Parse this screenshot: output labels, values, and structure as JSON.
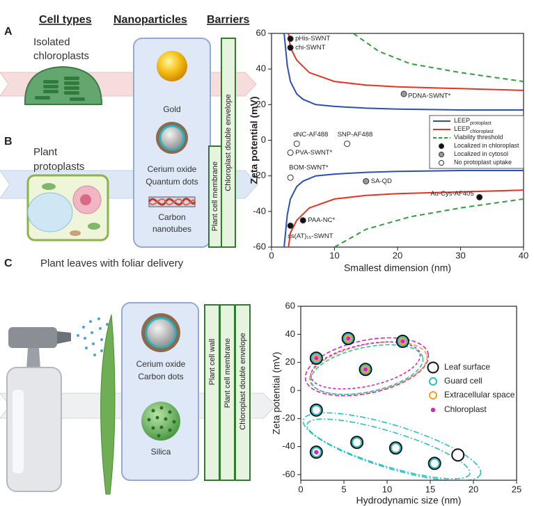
{
  "headers": [
    "Cell types",
    "Nanoparticles",
    "Barriers"
  ],
  "panel_labels": [
    "A",
    "B",
    "C"
  ],
  "panel_a": {
    "cell": [
      "Isolated",
      "chloroplasts"
    ]
  },
  "panel_b": {
    "cell": [
      "Plant",
      "protoplasts"
    ]
  },
  "nanoparticles_ab": [
    "Gold",
    "Cerium oxide",
    "Quantum dots",
    "Carbon",
    "nanotubes"
  ],
  "barriers_ab": [
    "Plant cell membrane",
    "Chloroplast double envelope"
  ],
  "panel_c": {
    "title": "Plant leaves with foliar delivery",
    "nanoparticles": [
      "Cerium oxide",
      "Carbon dots",
      "Silica"
    ],
    "barriers": [
      "Plant cell wall",
      "Plant cell membrane",
      "Chloroplast double envelope"
    ]
  },
  "chart_data": [
    {
      "type": "line",
      "x_label": "Smallest dimension (nm)",
      "y_label": "Zeta potential (mV)",
      "xlim": [
        0,
        40
      ],
      "xticks": [
        0,
        10,
        20,
        30,
        40
      ],
      "ylim": [
        -60,
        60
      ],
      "yticks": [
        -60,
        -40,
        -20,
        0,
        20,
        40,
        60
      ],
      "legend": "right",
      "series": [
        {
          "name": "LEEP",
          "subscript": "protoplast",
          "type": "line",
          "color": "#2b4fb5",
          "linestyle": "solid",
          "x": [
            2,
            2.5,
            3,
            4,
            5,
            7,
            10,
            15,
            20,
            30,
            40,
            null,
            2,
            2.5,
            3,
            4,
            5,
            7,
            10,
            15,
            20,
            30,
            40
          ],
          "values": [
            60,
            42,
            33,
            26,
            23,
            20,
            19,
            18,
            17.5,
            17,
            17,
            null,
            -60,
            -42,
            -33,
            -26,
            -23,
            -20,
            -19,
            -18,
            -17.5,
            -17,
            -17
          ]
        },
        {
          "name": "LEEP",
          "subscript": "chloroplast",
          "type": "line",
          "color": "#e8321e",
          "linestyle": "solid",
          "x": [
            2.7,
            3,
            4,
            6,
            10,
            15,
            20,
            30,
            40,
            null,
            2.7,
            3,
            4,
            6,
            10,
            15,
            20,
            30,
            40
          ],
          "values": [
            60,
            52,
            45,
            38,
            33,
            31,
            30,
            29,
            28,
            null,
            -60,
            -52,
            -45,
            -38,
            -33,
            -31,
            -30,
            -29,
            -28
          ]
        },
        {
          "name": "Viability threshold",
          "type": "line",
          "color": "#2e9e3a",
          "linestyle": "dashed",
          "x": [
            13,
            17,
            22,
            30,
            40,
            null,
            10,
            15,
            22,
            30,
            40
          ],
          "values": [
            60,
            50,
            43,
            38,
            33,
            null,
            -60,
            -50,
            -43,
            -38,
            -33
          ]
        },
        {
          "name": "Localized in chloroplast",
          "type": "scatter",
          "color": "#111111",
          "x": [
            3,
            3,
            33,
            5,
            3
          ],
          "values": [
            57,
            52,
            -32,
            -45,
            -48
          ],
          "labels": [
            "pHis-SWNT",
            "chi-SWNT",
            "Au-Cys-AF405",
            "PAA-NC*",
            "ss(AT)₁₅-SWNT"
          ]
        },
        {
          "name": "Localized in cytosol",
          "type": "scatter",
          "color": "#999999",
          "x": [
            21,
            15
          ],
          "values": [
            26,
            -23
          ],
          "labels": [
            "PDNA-SWNT*",
            "SA-QD"
          ]
        },
        {
          "name": "No protoplast uptake",
          "type": "scatter",
          "color": "#ffffff",
          "x": [
            4,
            12,
            3,
            3
          ],
          "values": [
            -2,
            -2,
            -7,
            -21
          ],
          "labels": [
            "dNC-AF488",
            "SNP-AF488",
            "PVA-SWNT*",
            "BOM-SWNT*"
          ]
        }
      ]
    },
    {
      "type": "scatter",
      "x_label": "Hydrodynamic size (nm)",
      "y_label": "Zeta potential (mV)",
      "xlim": [
        0,
        25
      ],
      "xticks": [
        0,
        5,
        10,
        15,
        20,
        25
      ],
      "ylim": [
        -64,
        60
      ],
      "yticks": [
        -60,
        -40,
        -20,
        0,
        20,
        40,
        60
      ],
      "legend": "right",
      "series": [
        {
          "name": "Leaf surface",
          "type": "scatter",
          "marker": "ring",
          "color": "#111111",
          "x": [
            1.8,
            5.5,
            7.5,
            11.8,
            1.8,
            6.5,
            11,
            15.5,
            1.8,
            18.2
          ],
          "values": [
            23,
            37,
            15,
            35,
            -14,
            -37,
            -41,
            -52,
            -44,
            -46
          ]
        },
        {
          "name": "Guard cell",
          "type": "scatter",
          "marker": "ring",
          "color": "#26bfc2",
          "x": [
            1.8,
            5.5,
            7.5,
            11.8,
            1.8,
            6.5,
            11,
            15.5,
            1.8
          ],
          "values": [
            23,
            37,
            15,
            35,
            -14,
            -37,
            -41,
            -52,
            -44
          ]
        },
        {
          "name": "Extracellular space",
          "type": "scatter",
          "marker": "ring",
          "color": "#f0a020",
          "x": [
            1.8,
            5.5,
            7.5,
            11.8
          ],
          "values": [
            23,
            37,
            15,
            35
          ]
        },
        {
          "name": "Chloroplast",
          "type": "scatter",
          "marker": "dot",
          "color": "#d028c8",
          "x": [
            1.8,
            5.5,
            7.5,
            11.8,
            1.8
          ],
          "values": [
            23,
            37,
            15,
            35,
            -44
          ]
        }
      ]
    }
  ]
}
